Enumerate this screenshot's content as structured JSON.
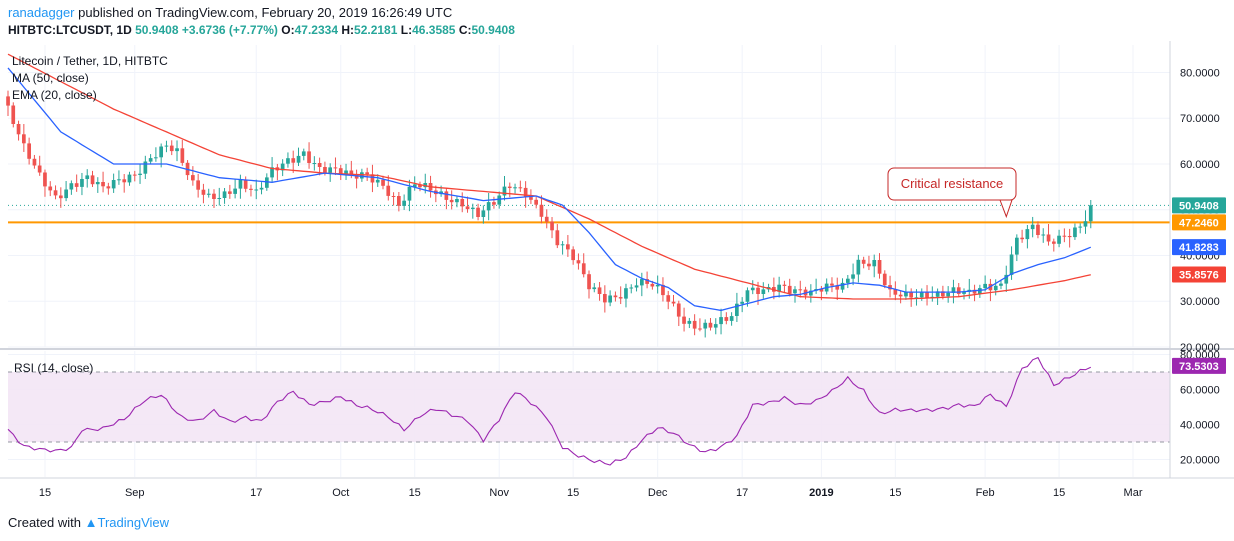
{
  "header": {
    "author": "ranadagger",
    "published_text": "published on TradingView.com, February 20, 2019 16:26:49 UTC",
    "symbol_line": "HITBTC:LTCUSDT, 1D",
    "last": "50.9408",
    "change": "+3.6736 (+7.77%)",
    "o_label": "O:",
    "o": "47.2334",
    "h_label": "H:",
    "h": "52.2181",
    "l_label": "L:",
    "l": "46.3585",
    "c_label": "C:",
    "c": "50.9408"
  },
  "footer": {
    "created_with": "Created with",
    "brand": "TradingView"
  },
  "colors": {
    "up": "#26a69a",
    "down": "#ef5350",
    "ma50": "#f44336",
    "ema20": "#2962ff",
    "resistance": "#ff9800",
    "rsi": "#9c27b0",
    "rsi_band": "#f3e5f5",
    "grid": "#f0f3fa"
  },
  "chart_data": [
    {
      "type": "candlestick",
      "title": "Litecoin / Tether, 1D, HITBTC",
      "indicators": [
        "MA (50, close)",
        "EMA (20, close)"
      ],
      "ylim": [
        20,
        86
      ],
      "y_ticks": [
        "80.0000",
        "70.0000",
        "60.0000",
        "50.0000",
        "40.0000",
        "30.0000",
        "20.0000"
      ],
      "y_tick_values": [
        80,
        70,
        60,
        50,
        40,
        30,
        20
      ],
      "x_tick_labels": [
        "15",
        "Sep",
        "17",
        "Oct",
        "15",
        "Nov",
        "15",
        "Dec",
        "17",
        "2019",
        "15",
        "Feb",
        "15",
        "Mar"
      ],
      "x_tick_days": [
        7,
        24,
        47,
        63,
        77,
        93,
        107,
        123,
        139,
        154,
        168,
        185,
        199,
        213
      ],
      "resistance": {
        "value": 47.246,
        "label": "47.2460"
      },
      "price_badges": [
        {
          "label": "50.9408",
          "value": 50.9408,
          "color": "#26a69a"
        },
        {
          "label": "47.2460",
          "value": 47.246,
          "color": "#ff9800"
        },
        {
          "label": "41.8283",
          "value": 41.8283,
          "color": "#2962ff"
        },
        {
          "label": "35.8576",
          "value": 35.8576,
          "color": "#f44336"
        }
      ],
      "annotation": {
        "text": "Critical resistance",
        "target_day": 189,
        "target_value": 48.5
      },
      "close_keypoints": [
        [
          0,
          72
        ],
        [
          3,
          63
        ],
        [
          6,
          57
        ],
        [
          9,
          53
        ],
        [
          12,
          56
        ],
        [
          15,
          57
        ],
        [
          18,
          54
        ],
        [
          21,
          56
        ],
        [
          24,
          58
        ],
        [
          27,
          62
        ],
        [
          30,
          64
        ],
        [
          32,
          62
        ],
        [
          35,
          55
        ],
        [
          38,
          53
        ],
        [
          41,
          54
        ],
        [
          44,
          56
        ],
        [
          47,
          53
        ],
        [
          50,
          58
        ],
        [
          53,
          61
        ],
        [
          56,
          63
        ],
        [
          59,
          59
        ],
        [
          62,
          58
        ],
        [
          65,
          57
        ],
        [
          68,
          58
        ],
        [
          71,
          56
        ],
        [
          74,
          51
        ],
        [
          77,
          55
        ],
        [
          80,
          54
        ],
        [
          83,
          53
        ],
        [
          86,
          52
        ],
        [
          89,
          49
        ],
        [
          92,
          51
        ],
        [
          95,
          55
        ],
        [
          98,
          54
        ],
        [
          101,
          50
        ],
        [
          104,
          43
        ],
        [
          107,
          39
        ],
        [
          110,
          33
        ],
        [
          113,
          31
        ],
        [
          116,
          32
        ],
        [
          119,
          34
        ],
        [
          122,
          33
        ],
        [
          125,
          30
        ],
        [
          128,
          26
        ],
        [
          131,
          25
        ],
        [
          134,
          25
        ],
        [
          137,
          26
        ],
        [
          140,
          32
        ],
        [
          143,
          33
        ],
        [
          146,
          34
        ],
        [
          149,
          32
        ],
        [
          152,
          31
        ],
        [
          155,
          33
        ],
        [
          158,
          34
        ],
        [
          161,
          39
        ],
        [
          164,
          38
        ],
        [
          167,
          31
        ],
        [
          170,
          31
        ],
        [
          173,
          32
        ],
        [
          176,
          32
        ],
        [
          179,
          32
        ],
        [
          182,
          31
        ],
        [
          185,
          33
        ],
        [
          188,
          34
        ],
        [
          191,
          44
        ],
        [
          194,
          46
        ],
        [
          197,
          42
        ],
        [
          200,
          44
        ],
        [
          203,
          47
        ],
        [
          205,
          51
        ]
      ],
      "ma50_keypoints": [
        [
          0,
          84
        ],
        [
          10,
          78
        ],
        [
          20,
          72
        ],
        [
          30,
          67
        ],
        [
          40,
          62
        ],
        [
          50,
          59
        ],
        [
          60,
          58
        ],
        [
          70,
          57.5
        ],
        [
          80,
          55
        ],
        [
          90,
          54
        ],
        [
          100,
          53
        ],
        [
          110,
          48
        ],
        [
          120,
          42
        ],
        [
          130,
          37
        ],
        [
          140,
          34
        ],
        [
          150,
          31
        ],
        [
          160,
          30.5
        ],
        [
          170,
          30.5
        ],
        [
          180,
          31
        ],
        [
          190,
          32.5
        ],
        [
          200,
          34.5
        ],
        [
          205,
          35.8
        ]
      ],
      "ema20_keypoints": [
        [
          0,
          81
        ],
        [
          10,
          67
        ],
        [
          20,
          60
        ],
        [
          30,
          60
        ],
        [
          40,
          57
        ],
        [
          50,
          56
        ],
        [
          60,
          58
        ],
        [
          70,
          57
        ],
        [
          80,
          54
        ],
        [
          90,
          52
        ],
        [
          100,
          53
        ],
        [
          105,
          51
        ],
        [
          110,
          45
        ],
        [
          115,
          38
        ],
        [
          120,
          35
        ],
        [
          125,
          33
        ],
        [
          130,
          29
        ],
        [
          135,
          28
        ],
        [
          140,
          29.5
        ],
        [
          145,
          31
        ],
        [
          150,
          31.5
        ],
        [
          155,
          33
        ],
        [
          160,
          34
        ],
        [
          165,
          33.5
        ],
        [
          170,
          32
        ],
        [
          175,
          32
        ],
        [
          180,
          32
        ],
        [
          185,
          32.5
        ],
        [
          190,
          36
        ],
        [
          195,
          38
        ],
        [
          200,
          39.5
        ],
        [
          205,
          41.8
        ]
      ]
    },
    {
      "type": "line",
      "title": "RSI (14, close)",
      "ylim": [
        10,
        82
      ],
      "y_ticks": [
        "80.0000",
        "60.0000",
        "40.0000",
        "20.0000"
      ],
      "y_tick_values": [
        80,
        60,
        40,
        20
      ],
      "band": [
        30,
        70
      ],
      "last_label": "73.5303",
      "last_value": 73.5303,
      "rsi_keypoints": [
        [
          0,
          38
        ],
        [
          3,
          28
        ],
        [
          6,
          25
        ],
        [
          9,
          24
        ],
        [
          12,
          27
        ],
        [
          14,
          38
        ],
        [
          18,
          38
        ],
        [
          22,
          42
        ],
        [
          26,
          54
        ],
        [
          29,
          58
        ],
        [
          33,
          44
        ],
        [
          36,
          41
        ],
        [
          39,
          47
        ],
        [
          42,
          42
        ],
        [
          45,
          45
        ],
        [
          48,
          42
        ],
        [
          51,
          52
        ],
        [
          54,
          58
        ],
        [
          57,
          52
        ],
        [
          60,
          54
        ],
        [
          63,
          56
        ],
        [
          66,
          50
        ],
        [
          69,
          48
        ],
        [
          72,
          45
        ],
        [
          75,
          38
        ],
        [
          78,
          45
        ],
        [
          81,
          48
        ],
        [
          84,
          45
        ],
        [
          87,
          43
        ],
        [
          90,
          32
        ],
        [
          93,
          43
        ],
        [
          96,
          58
        ],
        [
          99,
          52
        ],
        [
          102,
          45
        ],
        [
          105,
          28
        ],
        [
          108,
          22
        ],
        [
          111,
          18
        ],
        [
          114,
          17
        ],
        [
          117,
          22
        ],
        [
          120,
          32
        ],
        [
          123,
          38
        ],
        [
          126,
          34
        ],
        [
          129,
          28
        ],
        [
          132,
          25
        ],
        [
          135,
          28
        ],
        [
          138,
          33
        ],
        [
          141,
          50
        ],
        [
          144,
          52
        ],
        [
          147,
          56
        ],
        [
          150,
          52
        ],
        [
          153,
          53
        ],
        [
          156,
          58
        ],
        [
          159,
          66
        ],
        [
          162,
          60
        ],
        [
          165,
          47
        ],
        [
          168,
          48
        ],
        [
          171,
          47
        ],
        [
          174,
          48
        ],
        [
          177,
          50
        ],
        [
          180,
          52
        ],
        [
          183,
          50
        ],
        [
          186,
          56
        ],
        [
          189,
          50
        ],
        [
          192,
          73
        ],
        [
          195,
          79
        ],
        [
          198,
          62
        ],
        [
          201,
          66
        ],
        [
          203,
          70
        ],
        [
          205,
          73.5
        ]
      ]
    }
  ]
}
